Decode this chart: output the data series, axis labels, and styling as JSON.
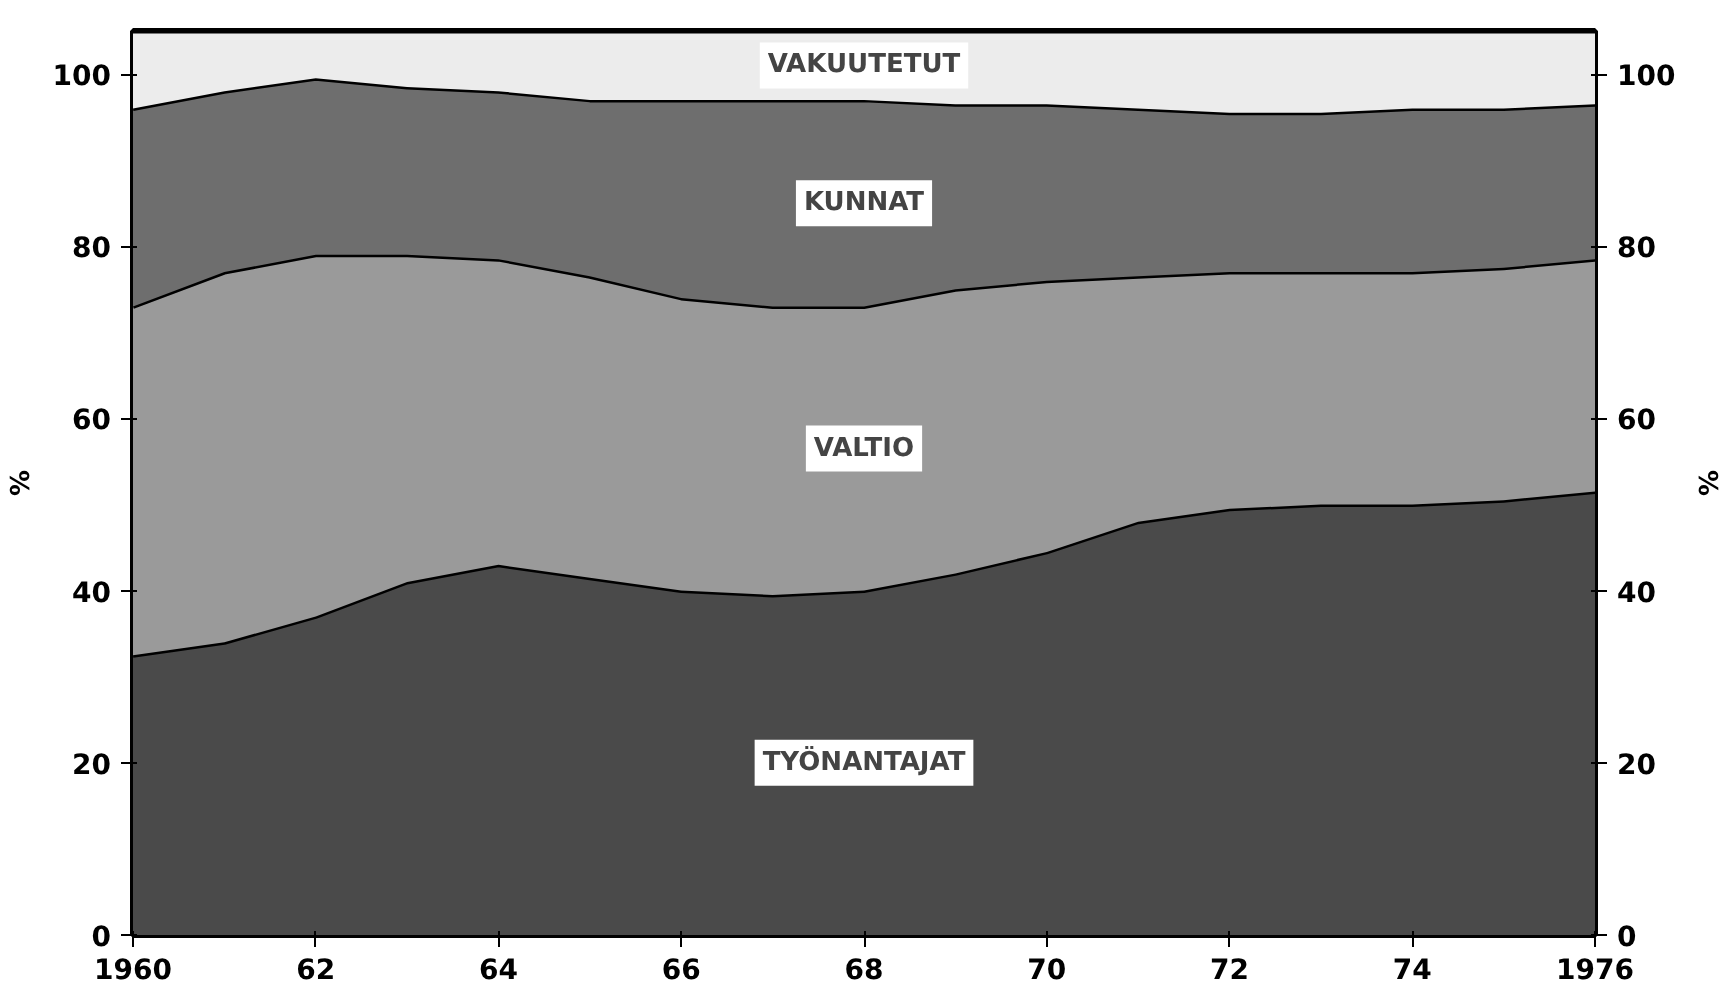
{
  "chart_data": {
    "type": "area",
    "stacked": true,
    "x": [
      1960,
      1961,
      1962,
      1963,
      1964,
      1965,
      1966,
      1967,
      1968,
      1969,
      1970,
      1971,
      1972,
      1973,
      1974,
      1975,
      1976
    ],
    "series": [
      {
        "name": "TYÖNANTAJAT",
        "color": "#4a4a4a",
        "values": [
          32.5,
          34,
          37,
          41,
          43,
          41.5,
          40,
          39.5,
          40,
          42,
          44.5,
          48,
          49.5,
          50,
          50,
          50.5,
          51.5
        ]
      },
      {
        "name": "VALTIO",
        "color": "#9a9a9a",
        "values": [
          40.5,
          43,
          42,
          38,
          35.5,
          35,
          34,
          33.5,
          33,
          33,
          31.5,
          28.5,
          27.5,
          27,
          27,
          27,
          27
        ]
      },
      {
        "name": "KUNNAT",
        "color": "#6e6e6e",
        "values": [
          23,
          21,
          20.5,
          19.5,
          19.5,
          20.5,
          23,
          24,
          24,
          21.5,
          20.5,
          19.5,
          18.5,
          18.5,
          19,
          18.5,
          18
        ]
      },
      {
        "name": "VAKUUTETUT",
        "color": "#ececec",
        "values": [
          9,
          7,
          5.5,
          6.5,
          7,
          8,
          8,
          8,
          8,
          8.5,
          8.5,
          9,
          9.5,
          9.5,
          9,
          9,
          8.5
        ]
      }
    ],
    "ylabel": "%",
    "y2label": "%",
    "xlim": [
      1960,
      1976
    ],
    "xticks": [
      {
        "value": 1960,
        "label": "1960"
      },
      {
        "value": 1962,
        "label": "62"
      },
      {
        "value": 1964,
        "label": "64"
      },
      {
        "value": 1966,
        "label": "66"
      },
      {
        "value": 1968,
        "label": "68"
      },
      {
        "value": 1970,
        "label": "70"
      },
      {
        "value": 1972,
        "label": "72"
      },
      {
        "value": 1974,
        "label": "74"
      },
      {
        "value": 1976,
        "label": "1976"
      }
    ],
    "ylim": [
      0,
      105
    ],
    "yticks": [
      0,
      20,
      40,
      60,
      80,
      100
    ],
    "y2lim": [
      0,
      105
    ],
    "y2ticks": [
      0,
      20,
      40,
      60,
      80,
      100
    ]
  }
}
